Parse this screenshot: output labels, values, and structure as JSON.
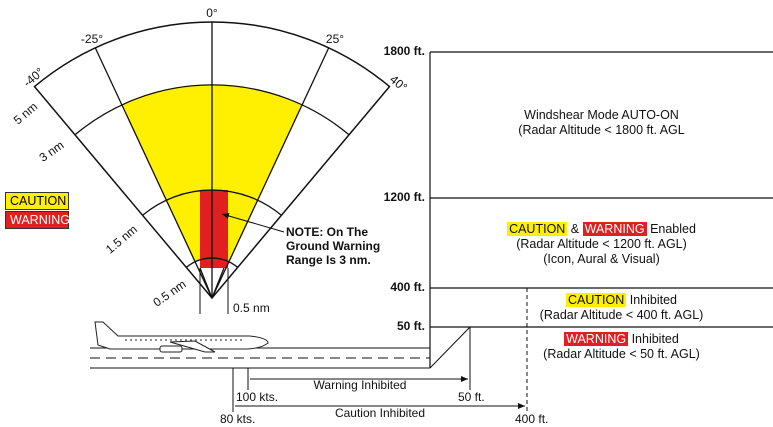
{
  "radar": {
    "angles": [
      "0°",
      "-25°",
      "25°",
      "-40°",
      "40°"
    ],
    "ranges": [
      "5 nm",
      "3 nm",
      "1.5 nm",
      "0.5 nm"
    ],
    "width_label": "0.5 nm",
    "note": [
      "NOTE: On The",
      "Ground Warning",
      "Range Is 3 nm."
    ]
  },
  "legend": [
    "CAUTION",
    "WARNING"
  ],
  "altitudes": [
    "1800 ft.",
    "1200 ft.",
    "400 ft.",
    "50 ft."
  ],
  "bands": [
    {
      "lines": [
        "Windshear Mode AUTO-ON",
        "(Radar Altitude < 1800 ft. AGL"
      ]
    },
    {
      "caution": "CAUTION",
      "and": "&",
      "warning": "WARNING",
      "status": "Enabled",
      "lines": [
        "(Radar Altitude < 1200 ft. AGL)",
        "(Icon, Aural & Visual)"
      ]
    },
    {
      "caution": "CAUTION",
      "status": "Inhibited",
      "lines": [
        "(Radar Altitude < 400 ft. AGL)"
      ]
    },
    {
      "warning": "WARNING",
      "status": "Inhibited",
      "lines": [
        "(Radar Altitude < 50 ft. AGL)"
      ]
    }
  ],
  "inhibit": {
    "warning": {
      "label": "Warning Inhibited",
      "start": "100 kts.",
      "end": "50 ft."
    },
    "caution": {
      "label": "Caution Inhibited",
      "start": "80 kts.",
      "end": "400 ft."
    }
  }
}
